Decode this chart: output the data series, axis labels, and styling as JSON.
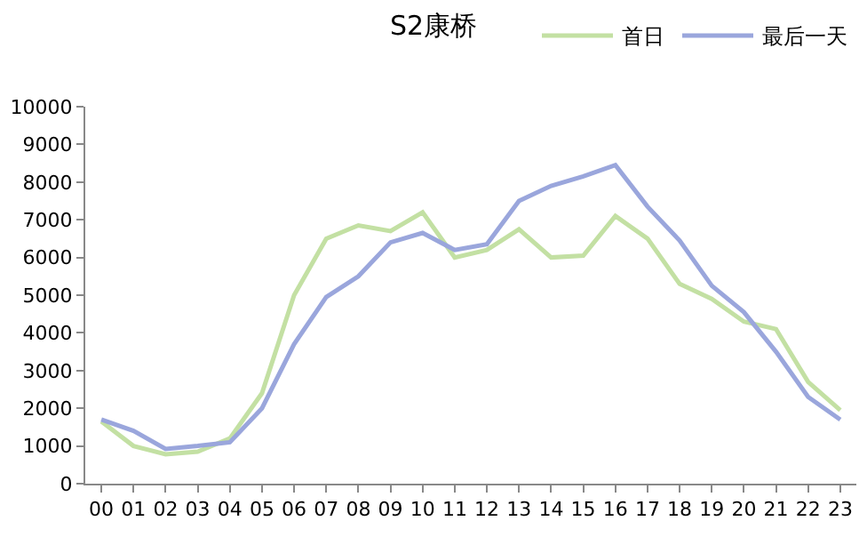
{
  "chart_data": {
    "type": "line",
    "title": "S2康桥",
    "categories": [
      "00",
      "01",
      "02",
      "03",
      "04",
      "05",
      "06",
      "07",
      "08",
      "09",
      "10",
      "11",
      "12",
      "13",
      "14",
      "15",
      "16",
      "17",
      "18",
      "19",
      "20",
      "21",
      "22",
      "23"
    ],
    "series": [
      {
        "name": "首日",
        "color": "#c3e0a3",
        "values": [
          1650,
          1000,
          780,
          850,
          1200,
          2400,
          5000,
          6500,
          6850,
          6700,
          7200,
          6000,
          6200,
          6750,
          6000,
          6050,
          7100,
          6500,
          5300,
          4900,
          4300,
          4100,
          2700,
          1950
        ]
      },
      {
        "name": "最后一天",
        "color": "#9aa6dc",
        "values": [
          1700,
          1400,
          920,
          1000,
          1100,
          2000,
          3700,
          4950,
          5500,
          6400,
          6650,
          6200,
          6350,
          7500,
          7900,
          8150,
          8450,
          7350,
          6450,
          5250,
          4550,
          3500,
          2300,
          1700
        ]
      }
    ],
    "ylim": [
      0,
      10000
    ],
    "yticks": [
      0,
      1000,
      2000,
      3000,
      4000,
      5000,
      6000,
      7000,
      8000,
      9000,
      10000
    ],
    "grid": false,
    "legend": "top right",
    "marker": "none",
    "line_style": "solid"
  }
}
